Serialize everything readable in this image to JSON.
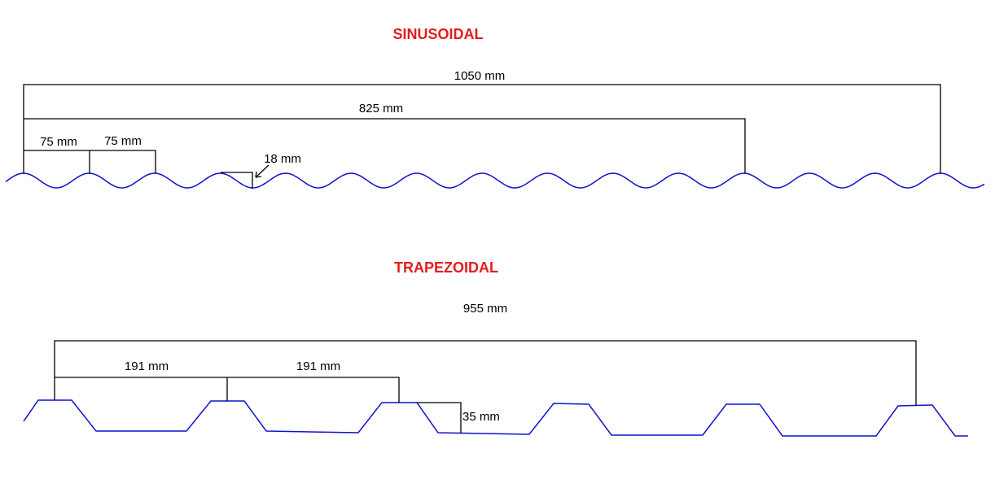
{
  "sinusoidal": {
    "title": "SINUSOIDAL",
    "dimensions": [
      "1050 mm",
      "825 mm",
      "75 mm",
      "75 mm",
      "18 mm"
    ]
  },
  "trapezoidal": {
    "title": "TRAPEZOIDAL",
    "dimensions": [
      "955 mm",
      "191 mm",
      "191 mm",
      "35 mm"
    ]
  }
}
